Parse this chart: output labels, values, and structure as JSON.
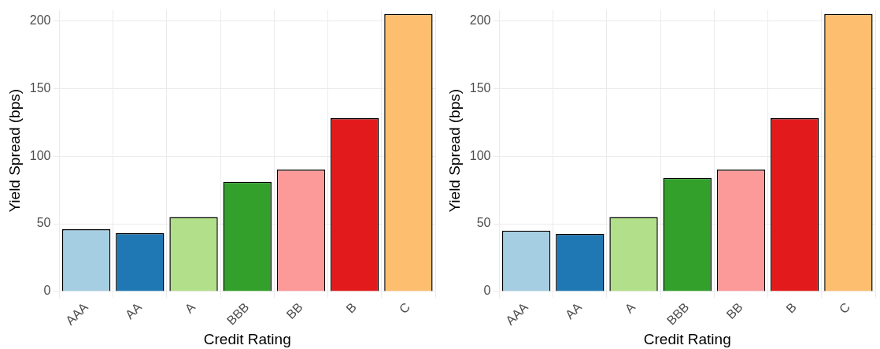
{
  "chart_data": [
    {
      "type": "bar",
      "xlabel": "Credit Rating",
      "ylabel": "Yield Spread (bps)",
      "categories": [
        "AAA",
        "AA",
        "A",
        "BBB",
        "BB",
        "B",
        "C"
      ],
      "values": [
        46,
        43,
        55,
        81,
        90,
        128,
        205
      ],
      "colors": [
        "#a6cee3",
        "#1f78b4",
        "#b2df8a",
        "#33a02c",
        "#fb9a99",
        "#e31a1c",
        "#fdbf6f"
      ],
      "ylim": [
        0,
        208
      ],
      "yticks": [
        0,
        50,
        100,
        150,
        200
      ],
      "grid": true,
      "legend": false
    },
    {
      "type": "bar",
      "xlabel": "Credit Rating",
      "ylabel": "Yield Spread (bps)",
      "categories": [
        "AAA",
        "AA",
        "A",
        "BBB",
        "BB",
        "B",
        "C"
      ],
      "values": [
        45,
        42.5,
        55,
        84,
        90,
        128,
        205
      ],
      "colors": [
        "#a6cee3",
        "#1f78b4",
        "#b2df8a",
        "#33a02c",
        "#fb9a99",
        "#e31a1c",
        "#fdbf6f"
      ],
      "ylim": [
        0,
        208
      ],
      "yticks": [
        0,
        50,
        100,
        150,
        200
      ],
      "grid": true,
      "legend": false
    }
  ]
}
